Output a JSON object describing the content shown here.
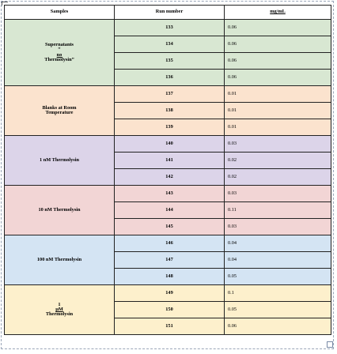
{
  "table": {
    "headers": {
      "samples": "Samples",
      "run_number": "Run number",
      "unit": "mg/mL"
    },
    "groups": [
      {
        "label_line1": "Supernatants",
        "label_line2_pre": "“",
        "label_line2_underlined": "no",
        "label_line2_post": " Thermolysin”",
        "color": "#d8e7d2",
        "rows": [
          {
            "run": "133",
            "conc": "0.06"
          },
          {
            "run": "134",
            "conc": "0.06"
          },
          {
            "run": "135",
            "conc": "0.06"
          },
          {
            "run": "136",
            "conc": "0.06"
          }
        ]
      },
      {
        "label_line1": "Blanks at Room",
        "label_line2": "Temperature",
        "color": "#fbe3ce",
        "rows": [
          {
            "run": "137",
            "conc": "0.01"
          },
          {
            "run": "138",
            "conc": "0.01"
          },
          {
            "run": "139",
            "conc": "0.01"
          }
        ]
      },
      {
        "label_line1": "1 nM Thermolysin",
        "color": "#dcd4e9",
        "rows": [
          {
            "run": "140",
            "conc": "0.03"
          },
          {
            "run": "141",
            "conc": "0.02"
          },
          {
            "run": "142",
            "conc": "0.02"
          }
        ]
      },
      {
        "label_line1": "10 nM Thermolysin",
        "color": "#f2d5d5",
        "rows": [
          {
            "run": "143",
            "conc": "0.03"
          },
          {
            "run": "144",
            "conc": "0.11"
          },
          {
            "run": "145",
            "conc": "0.03"
          }
        ]
      },
      {
        "label_line1": "100 nM Thermolysin",
        "color": "#d4e4f3",
        "rows": [
          {
            "run": "146",
            "conc": "0.04"
          },
          {
            "run": "147",
            "conc": "0.04"
          },
          {
            "run": "148",
            "conc": "0.05"
          }
        ]
      },
      {
        "label_pre": "1 ",
        "label_underlined": "µM",
        "label_post": " Thermolysin",
        "color": "#fdf0cc",
        "rows": [
          {
            "run": "149",
            "conc": "0.1"
          },
          {
            "run": "150",
            "conc": "0.05"
          },
          {
            "run": "151",
            "conc": "0.06"
          }
        ]
      }
    ]
  }
}
